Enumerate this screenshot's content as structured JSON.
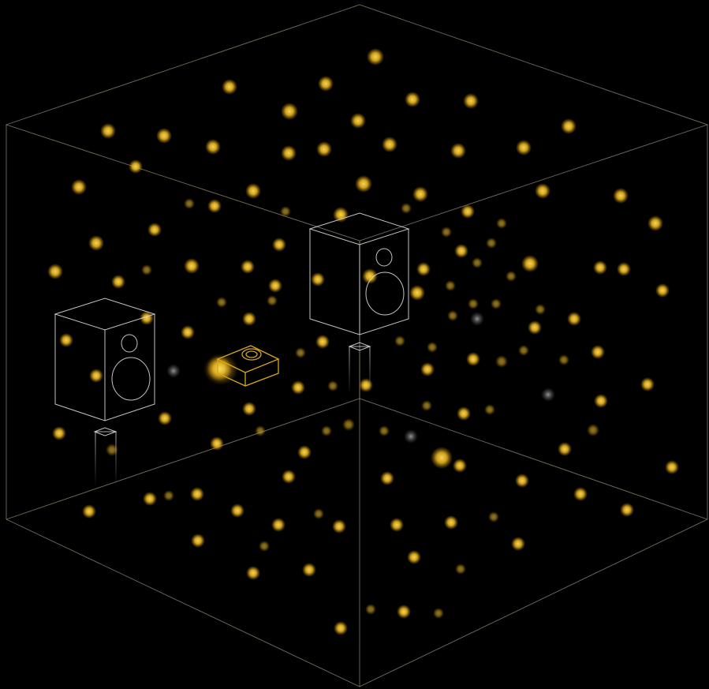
{
  "colors": {
    "background": "#000000",
    "room_edge": "#8a8170",
    "speaker_outline": "#d9d9d9",
    "source_outline": "#d6a520",
    "particle_gold": "#f5c42a",
    "particle_grey": "#9a9a9a"
  },
  "objects": {
    "room": "wireframe-room-cube",
    "speakers": [
      "left-speaker",
      "rear-speaker"
    ],
    "source": "sound-source-box",
    "particles": "reflection-particles"
  }
}
